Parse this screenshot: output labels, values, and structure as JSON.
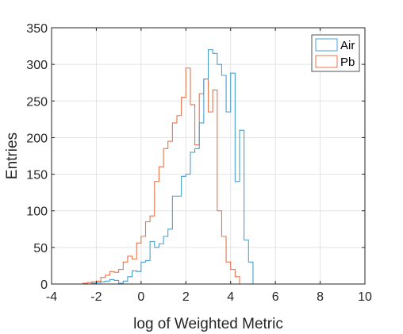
{
  "chart_data": {
    "type": "histogram",
    "xlabel": "log of Weighted Metric",
    "ylabel": "Entries",
    "xlim": [
      -4,
      10
    ],
    "ylim": [
      0,
      350
    ],
    "xticks": [
      "-4",
      "-2",
      "0",
      "2",
      "4",
      "6",
      "8",
      "10"
    ],
    "yticks": [
      "0",
      "50",
      "100",
      "150",
      "200",
      "250",
      "300",
      "350"
    ],
    "grid": true,
    "legend_position": "top-right",
    "bin_width": 0.2,
    "series": [
      {
        "name": "Air",
        "color": "#4aa0d0",
        "bins_start": -2.6,
        "counts": [
          0,
          0,
          1,
          2,
          3,
          4,
          6,
          5,
          1,
          4,
          10,
          18,
          17,
          30,
          32,
          58,
          50,
          55,
          65,
          75,
          120,
          120,
          147,
          150,
          180,
          185,
          220,
          280,
          320,
          315,
          300,
          285,
          235,
          288,
          140,
          210,
          60,
          30,
          0
        ]
      },
      {
        "name": "Pb",
        "color": "#e8744c",
        "bins_start": -2.6,
        "counts": [
          1,
          2,
          3,
          4,
          9,
          12,
          17,
          16,
          20,
          30,
          38,
          34,
          56,
          65,
          85,
          93,
          140,
          160,
          185,
          195,
          220,
          230,
          255,
          295,
          245,
          190,
          260,
          280,
          235,
          265,
          100,
          65,
          30,
          20,
          10,
          0,
          0,
          0,
          0
        ]
      }
    ]
  }
}
